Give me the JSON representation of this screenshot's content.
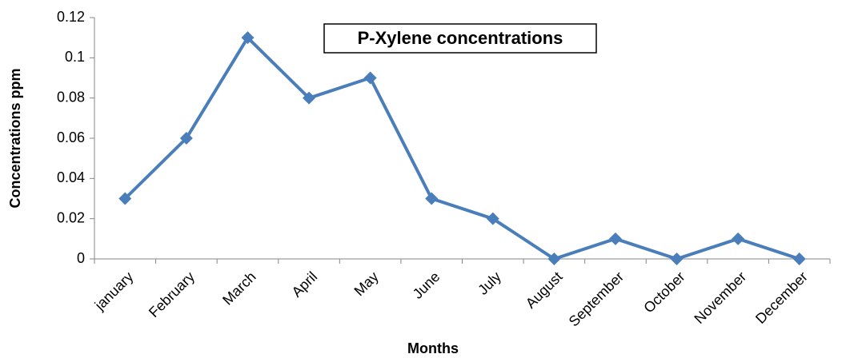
{
  "chart_data": {
    "type": "line",
    "title": "P-Xylene concentrations",
    "x_label": "Months",
    "y_label": "Concentrations  ppm",
    "categories": [
      "january",
      "February",
      "March",
      "April",
      "May",
      "June",
      "July",
      "August",
      "September",
      "October",
      "November",
      "December"
    ],
    "series": [
      {
        "name": "P-Xylene",
        "color": "#4a7ebb",
        "values": [
          0.03,
          0.06,
          0.11,
          0.08,
          0.09,
          0.03,
          0.02,
          0,
          0.01,
          0,
          0.01,
          0
        ]
      }
    ],
    "ylim": [
      0,
      0.12
    ],
    "yticks": [
      0,
      0.02,
      0.04,
      0.06,
      0.08,
      0.1,
      0.12
    ],
    "grid": false,
    "legend": false
  }
}
